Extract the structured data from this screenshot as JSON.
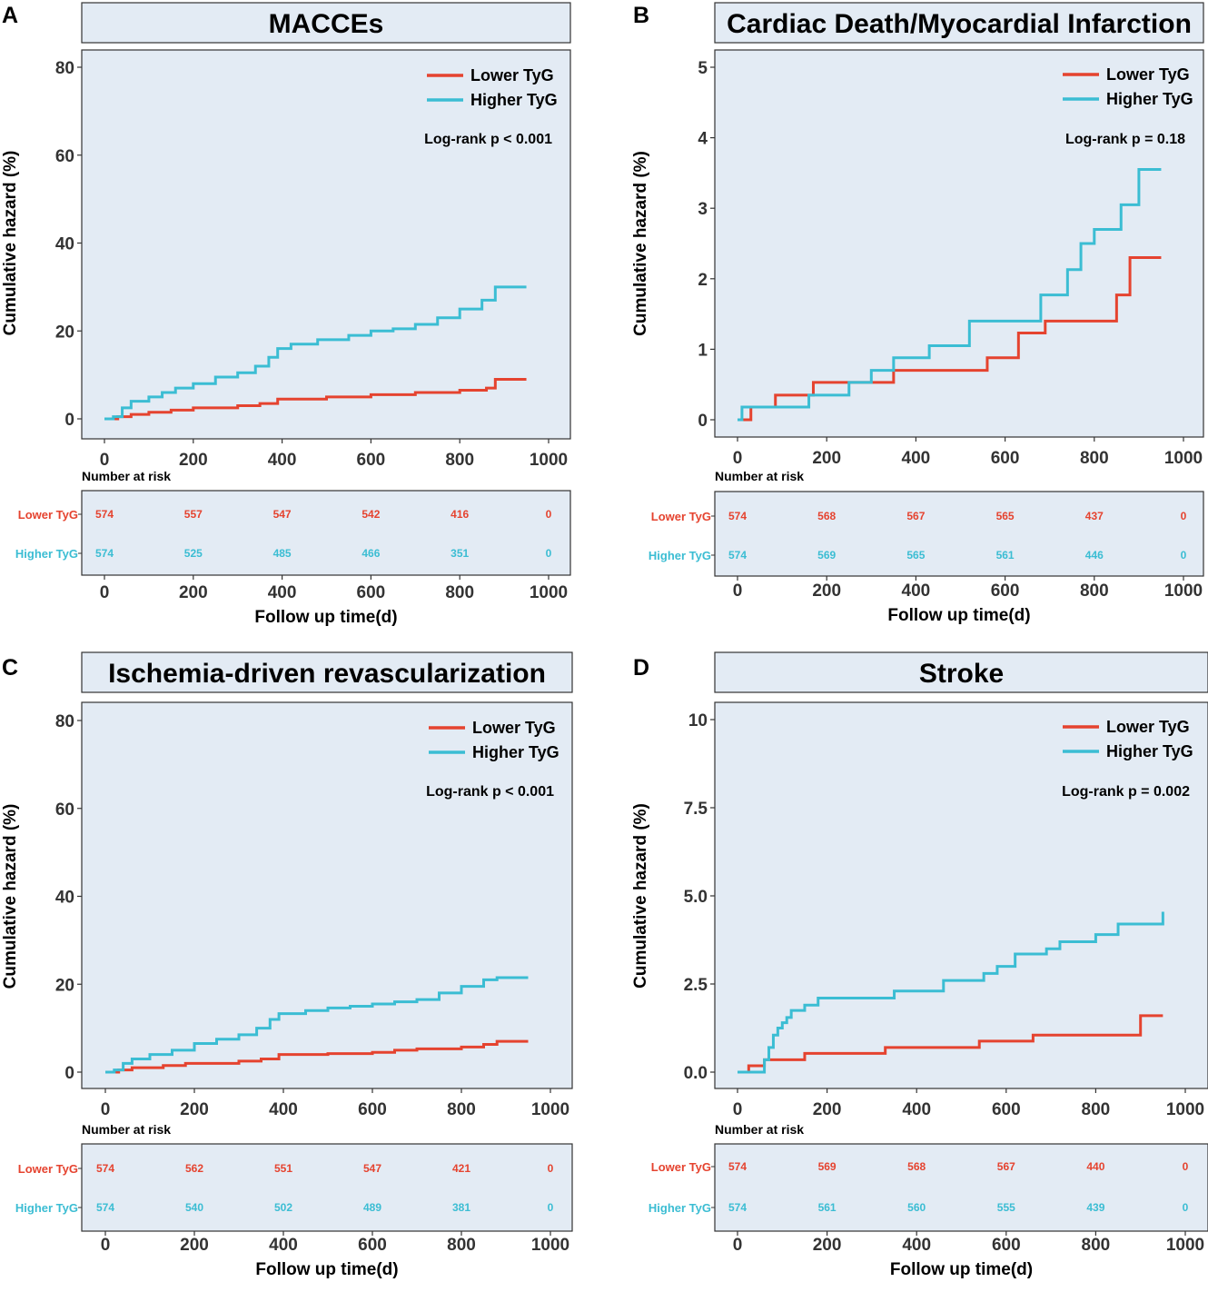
{
  "colors": {
    "lower": "#e5432f",
    "higher": "#3bbdd3",
    "plot_bg": "#e3ebf4",
    "title_bg": "#e3ebf4"
  },
  "common": {
    "ylabel": "Cumulative hazard (%)",
    "xlabel": "Follow up time(d)",
    "risk_title": "Number at risk",
    "groups": [
      "Lower TyG",
      "Higher TyG"
    ],
    "x_ticks": [
      "0",
      "200",
      "400",
      "600",
      "800",
      "1000"
    ]
  },
  "chart_data": [
    {
      "panel": "A",
      "type": "line",
      "title": "MACCEs",
      "pvalue": "Log-rank p < 0.001",
      "ylim": [
        0,
        80
      ],
      "xlim": [
        0,
        1000
      ],
      "y_ticks": [
        0,
        20,
        40,
        60,
        80
      ],
      "y_tick_labels": [
        "0",
        "20",
        "40",
        "60",
        "80"
      ],
      "series": [
        {
          "name": "Lower TyG",
          "x": [
            0,
            30,
            60,
            100,
            150,
            200,
            300,
            350,
            390,
            500,
            600,
            700,
            800,
            860,
            880,
            950
          ],
          "y": [
            0,
            0.5,
            1,
            1.5,
            2,
            2.5,
            3,
            3.5,
            4.5,
            5,
            5.5,
            6,
            6.5,
            7,
            9,
            9
          ]
        },
        {
          "name": "Higher TyG",
          "x": [
            0,
            20,
            40,
            60,
            100,
            130,
            160,
            200,
            250,
            300,
            340,
            370,
            390,
            420,
            480,
            550,
            600,
            650,
            700,
            750,
            800,
            850,
            880,
            950
          ],
          "y": [
            0,
            0.5,
            2.5,
            4,
            5,
            6,
            7,
            8,
            9.5,
            10.5,
            12,
            14,
            16,
            17,
            18,
            19,
            20,
            20.5,
            21.5,
            23,
            25,
            27,
            30,
            30
          ]
        }
      ],
      "risk": [
        {
          "name": "Lower TyG",
          "values": [
            "574",
            "557",
            "547",
            "542",
            "416",
            "0"
          ]
        },
        {
          "name": "Higher TyG",
          "values": [
            "574",
            "525",
            "485",
            "466",
            "351",
            "0"
          ]
        }
      ]
    },
    {
      "panel": "B",
      "type": "line",
      "title": "Cardiac Death/Myocardial Infarction",
      "pvalue": "Log-rank p = 0.18",
      "ylim": [
        0,
        5
      ],
      "xlim": [
        0,
        1000
      ],
      "y_ticks": [
        0,
        1,
        2,
        3,
        4,
        5
      ],
      "y_tick_labels": [
        "0",
        "1",
        "2",
        "3",
        "4",
        "5"
      ],
      "series": [
        {
          "name": "Lower TyG",
          "x": [
            0,
            30,
            85,
            170,
            350,
            560,
            630,
            690,
            850,
            880,
            950
          ],
          "y": [
            0,
            0.18,
            0.35,
            0.53,
            0.7,
            0.88,
            1.23,
            1.4,
            1.77,
            2.3,
            2.3
          ]
        },
        {
          "name": "Higher TyG",
          "x": [
            0,
            10,
            160,
            250,
            300,
            350,
            430,
            520,
            680,
            740,
            770,
            800,
            860,
            900,
            950
          ],
          "y": [
            0,
            0.18,
            0.35,
            0.53,
            0.7,
            0.88,
            1.05,
            1.4,
            1.77,
            2.13,
            2.5,
            2.7,
            3.05,
            3.55,
            3.55
          ]
        }
      ],
      "risk": [
        {
          "name": "Lower TyG",
          "values": [
            "574",
            "568",
            "567",
            "565",
            "437",
            "0"
          ]
        },
        {
          "name": "Higher TyG",
          "values": [
            "574",
            "569",
            "565",
            "561",
            "446",
            "0"
          ]
        }
      ]
    },
    {
      "panel": "C",
      "type": "line",
      "title": "Ischemia-driven revascularization",
      "pvalue": "Log-rank p < 0.001",
      "ylim": [
        0,
        80
      ],
      "xlim": [
        0,
        1000
      ],
      "y_ticks": [
        0,
        20,
        40,
        60,
        80
      ],
      "y_tick_labels": [
        "0",
        "20",
        "40",
        "60",
        "80"
      ],
      "series": [
        {
          "name": "Lower TyG",
          "x": [
            0,
            30,
            60,
            130,
            180,
            300,
            350,
            390,
            500,
            600,
            650,
            700,
            800,
            850,
            880,
            950
          ],
          "y": [
            0,
            0.5,
            1,
            1.5,
            2,
            2.5,
            3,
            4,
            4.2,
            4.5,
            5,
            5.3,
            5.7,
            6.3,
            7,
            7
          ]
        },
        {
          "name": "Higher TyG",
          "x": [
            0,
            20,
            40,
            60,
            100,
            150,
            200,
            250,
            300,
            340,
            370,
            390,
            450,
            500,
            550,
            600,
            650,
            700,
            750,
            800,
            850,
            880,
            950
          ],
          "y": [
            0,
            0.5,
            2,
            3,
            4,
            5,
            6.5,
            7.5,
            8.5,
            10,
            12,
            13.3,
            14,
            14.6,
            15,
            15.5,
            16,
            16.5,
            18,
            19.5,
            21,
            21.5,
            21.5
          ]
        }
      ],
      "risk": [
        {
          "name": "Lower TyG",
          "values": [
            "574",
            "562",
            "551",
            "547",
            "421",
            "0"
          ]
        },
        {
          "name": "Higher TyG",
          "values": [
            "574",
            "540",
            "502",
            "489",
            "381",
            "0"
          ]
        }
      ]
    },
    {
      "panel": "D",
      "type": "line",
      "title": "Stroke",
      "pvalue": "Log-rank p = 0.002",
      "ylim": [
        0,
        10
      ],
      "xlim": [
        0,
        1000
      ],
      "y_ticks": [
        0,
        2.5,
        5,
        7.5,
        10
      ],
      "y_tick_labels": [
        "0.0",
        "2.5",
        "5.0",
        "7.5",
        "10"
      ],
      "series": [
        {
          "name": "Lower TyG",
          "x": [
            0,
            25,
            60,
            150,
            330,
            540,
            660,
            900,
            950
          ],
          "y": [
            0,
            0.18,
            0.35,
            0.53,
            0.7,
            0.88,
            1.05,
            1.6,
            1.6
          ]
        },
        {
          "name": "Higher TyG",
          "x": [
            0,
            60,
            70,
            80,
            90,
            100,
            110,
            120,
            150,
            180,
            350,
            460,
            550,
            580,
            620,
            690,
            720,
            800,
            850,
            950
          ],
          "y": [
            0,
            0.35,
            0.7,
            1.05,
            1.25,
            1.4,
            1.55,
            1.75,
            1.9,
            2.1,
            2.3,
            2.6,
            2.8,
            3.0,
            3.35,
            3.5,
            3.7,
            3.9,
            4.2,
            4.55
          ]
        }
      ],
      "risk": [
        {
          "name": "Lower TyG",
          "values": [
            "574",
            "569",
            "568",
            "567",
            "440",
            "0"
          ]
        },
        {
          "name": "Higher TyG",
          "values": [
            "574",
            "561",
            "560",
            "555",
            "439",
            "0"
          ]
        }
      ]
    }
  ]
}
